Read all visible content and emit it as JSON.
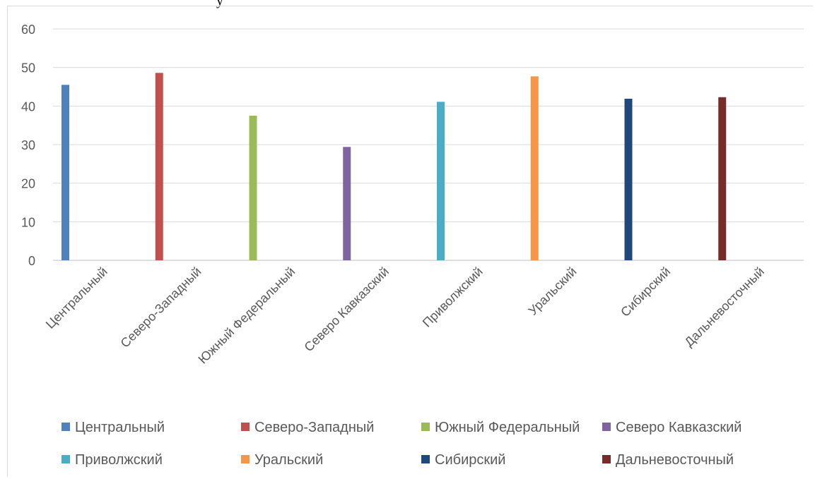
{
  "page_top_fragment": "у",
  "chart_data": {
    "type": "bar",
    "title": "",
    "xlabel": "",
    "ylabel": "",
    "ylim": [
      0,
      60
    ],
    "yticks": [
      0,
      10,
      20,
      30,
      40,
      50,
      60
    ],
    "grid": true,
    "legend_position": "bottom",
    "categories": [
      "Центральный",
      "Северо-Западный",
      "Южный Федеральный",
      "Северо Кавказский",
      "Приволжский",
      "Уральский",
      "Сибирский",
      "Дальневосточный"
    ],
    "series": [
      {
        "name": "Центральный",
        "color": "#4f81bd",
        "values": [
          45.5,
          null,
          null,
          null,
          null,
          null,
          null,
          null
        ]
      },
      {
        "name": "Северо-Западный",
        "color": "#c0504d",
        "values": [
          null,
          48.6,
          null,
          null,
          null,
          null,
          null,
          null
        ]
      },
      {
        "name": "Южный Федеральный",
        "color": "#9bbb59",
        "values": [
          null,
          null,
          37.5,
          null,
          null,
          null,
          null,
          null
        ]
      },
      {
        "name": "Северо Кавказский",
        "color": "#8064a2",
        "values": [
          null,
          null,
          null,
          29.4,
          null,
          null,
          null,
          null
        ]
      },
      {
        "name": "Приволжский",
        "color": "#4bacc6",
        "values": [
          null,
          null,
          null,
          null,
          41.1,
          null,
          null,
          null
        ]
      },
      {
        "name": "Уральский",
        "color": "#f79646",
        "values": [
          null,
          null,
          null,
          null,
          null,
          47.7,
          null,
          null
        ]
      },
      {
        "name": "Сибирский",
        "color": "#1f497d",
        "values": [
          null,
          null,
          null,
          null,
          null,
          null,
          41.9,
          null
        ]
      },
      {
        "name": "Дальневосточный",
        "color": "#772c2a",
        "values": [
          null,
          null,
          null,
          null,
          null,
          null,
          null,
          42.3
        ]
      }
    ]
  }
}
